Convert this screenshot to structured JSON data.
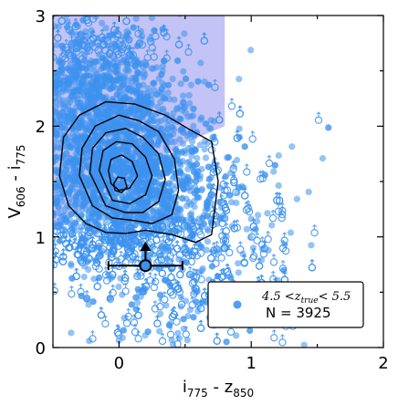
{
  "chart_data": {
    "type": "scatter",
    "title": "",
    "xlabel": "i775 - z850",
    "xlabel_main": "i",
    "xlabel_sub1": "775",
    "xlabel_mid": " - z",
    "xlabel_sub2": "850",
    "ylabel": "V606 - i775",
    "ylabel_main": "V",
    "ylabel_sub1": "606",
    "ylabel_mid": " - i",
    "ylabel_sub2": "775",
    "xlim": [
      -0.5,
      2.0
    ],
    "ylim": [
      0.0,
      3.0
    ],
    "x_ticks": [
      0,
      1,
      2
    ],
    "x_tick_labels": [
      "0",
      "1",
      "2"
    ],
    "y_ticks": [
      0,
      1,
      2,
      3
    ],
    "y_tick_labels": [
      "0",
      "1",
      "2",
      "3"
    ],
    "grid": false,
    "legend_placement": "bottom-right",
    "legend": {
      "marker_color": "#4f9ff0",
      "label_prefix": "4.5 <",
      "label_var": "z",
      "label_var_sub": "true",
      "label_suffix": "< 5.5",
      "count_label": "N = 3925"
    },
    "point_color": "#3d92ee",
    "selection_region": {
      "color": "#7b7be8",
      "vertices": [
        [
          -0.5,
          1.07
        ],
        [
          -0.5,
          3.0
        ],
        [
          0.8,
          3.0
        ],
        [
          0.8,
          2.0
        ],
        [
          0.5,
          1.85
        ]
      ]
    },
    "series": [
      {
        "n_points": 3925,
        "color": "#3d92ee",
        "marker": "circle"
      }
    ],
    "contours": [
      [
        [
          -0.45,
          1.55
        ],
        [
          -0.42,
          1.9
        ],
        [
          -0.3,
          2.1
        ],
        [
          -0.1,
          2.22
        ],
        [
          0.12,
          2.2
        ],
        [
          0.35,
          2.1
        ],
        [
          0.52,
          1.98
        ],
        [
          0.7,
          1.86
        ],
        [
          0.75,
          1.5
        ],
        [
          0.7,
          1.02
        ],
        [
          0.58,
          0.95
        ],
        [
          0.4,
          1.02
        ],
        [
          0.2,
          1.06
        ],
        [
          0.05,
          1.03
        ],
        [
          -0.1,
          1.04
        ],
        [
          -0.25,
          1.12
        ],
        [
          -0.38,
          1.28
        ],
        [
          -0.45,
          1.55
        ]
      ],
      [
        [
          -0.3,
          1.55
        ],
        [
          -0.28,
          1.8
        ],
        [
          -0.18,
          2.0
        ],
        [
          0.0,
          2.1
        ],
        [
          0.15,
          2.05
        ],
        [
          0.3,
          1.95
        ],
        [
          0.42,
          1.7
        ],
        [
          0.45,
          1.42
        ],
        [
          0.4,
          1.2
        ],
        [
          0.25,
          1.12
        ],
        [
          0.1,
          1.15
        ],
        [
          -0.05,
          1.17
        ],
        [
          -0.2,
          1.28
        ],
        [
          -0.3,
          1.55
        ]
      ],
      [
        [
          -0.22,
          1.58
        ],
        [
          -0.2,
          1.8
        ],
        [
          -0.1,
          1.94
        ],
        [
          0.05,
          1.98
        ],
        [
          0.18,
          1.9
        ],
        [
          0.3,
          1.75
        ],
        [
          0.35,
          1.52
        ],
        [
          0.3,
          1.32
        ],
        [
          0.18,
          1.22
        ],
        [
          0.05,
          1.22
        ],
        [
          -0.1,
          1.28
        ],
        [
          -0.22,
          1.58
        ]
      ],
      [
        [
          -0.15,
          1.6
        ],
        [
          -0.12,
          1.78
        ],
        [
          -0.02,
          1.86
        ],
        [
          0.1,
          1.84
        ],
        [
          0.2,
          1.72
        ],
        [
          0.25,
          1.55
        ],
        [
          0.2,
          1.38
        ],
        [
          0.08,
          1.3
        ],
        [
          -0.05,
          1.33
        ],
        [
          -0.15,
          1.6
        ]
      ],
      [
        [
          -0.08,
          1.6
        ],
        [
          -0.06,
          1.7
        ],
        [
          0.02,
          1.74
        ],
        [
          0.1,
          1.68
        ],
        [
          0.14,
          1.55
        ],
        [
          0.08,
          1.44
        ],
        [
          0.0,
          1.42
        ],
        [
          -0.06,
          1.48
        ],
        [
          -0.08,
          1.6
        ]
      ],
      [
        [
          -0.04,
          1.48
        ],
        [
          -0.01,
          1.54
        ],
        [
          0.04,
          1.53
        ],
        [
          0.06,
          1.45
        ],
        [
          0.02,
          1.4
        ],
        [
          -0.03,
          1.42
        ],
        [
          -0.04,
          1.48
        ]
      ]
    ],
    "error_point": {
      "x": 0.2,
      "y": 0.74,
      "xerr": 0.28,
      "yerr_up": 0.2
    }
  }
}
